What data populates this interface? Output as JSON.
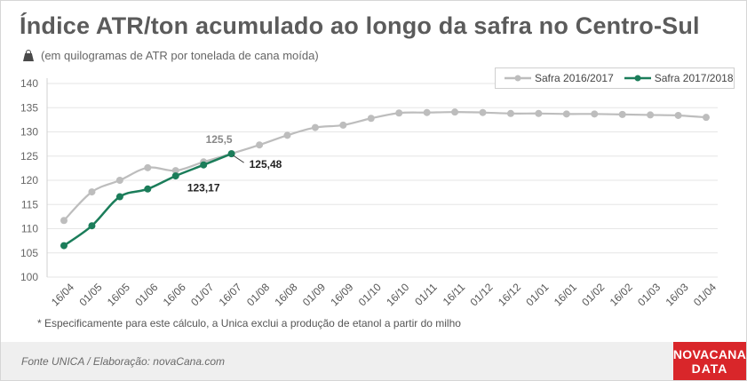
{
  "title": "Índice ATR/ton acumulado ao longo da safra no Centro-Sul",
  "subtitle": "(em quilogramas de ATR por tonelada de cana moída)",
  "subtitle_icon": "weight-icon",
  "footnote": "* Especificamente para este cálculo, a Unica exclui a produção de etanol a partir do milho",
  "footer": {
    "source": "Fonte UNICA / Elaboração: novaCana.com",
    "brand_line1": "NOVACANA",
    "brand_line2": "DATA",
    "brand_color": "#d9262a"
  },
  "chart_data": {
    "type": "line",
    "categories": [
      "16/04",
      "01/05",
      "16/05",
      "01/06",
      "16/06",
      "01/07",
      "16/07",
      "01/08",
      "16/08",
      "01/09",
      "16/09",
      "01/10",
      "16/10",
      "01/11",
      "16/11",
      "01/12",
      "16/12",
      "01/01",
      "16/01",
      "01/02",
      "16/02",
      "01/03",
      "16/03",
      "01/04"
    ],
    "ylim": [
      100,
      140
    ],
    "yticks": [
      100,
      105,
      110,
      115,
      120,
      125,
      130,
      135,
      140
    ],
    "grid": true,
    "legend_position": "top-right",
    "series": [
      {
        "name": "Safra 2016/2017",
        "color": "#bdbdbd",
        "values": [
          111.7,
          117.6,
          120.0,
          122.6,
          122.0,
          123.8,
          125.5,
          127.3,
          129.3,
          130.9,
          131.4,
          132.8,
          133.9,
          134.0,
          134.1,
          134.0,
          133.8,
          133.8,
          133.7,
          133.7,
          133.6,
          133.5,
          133.4,
          133.0
        ]
      },
      {
        "name": "Safra 2017/2018",
        "color": "#1b7d5a",
        "values": [
          106.5,
          110.6,
          116.6,
          118.2,
          120.9,
          123.17,
          125.48,
          null,
          null,
          null,
          null,
          null,
          null,
          null,
          null,
          null,
          null,
          null,
          null,
          null,
          null,
          null,
          null,
          null
        ]
      }
    ],
    "annotations": [
      {
        "series": 0,
        "index": 6,
        "text": "125,5"
      },
      {
        "series": 1,
        "index": 6,
        "text": "125,48"
      },
      {
        "series": 1,
        "index": 5,
        "text": "123,17"
      }
    ]
  }
}
